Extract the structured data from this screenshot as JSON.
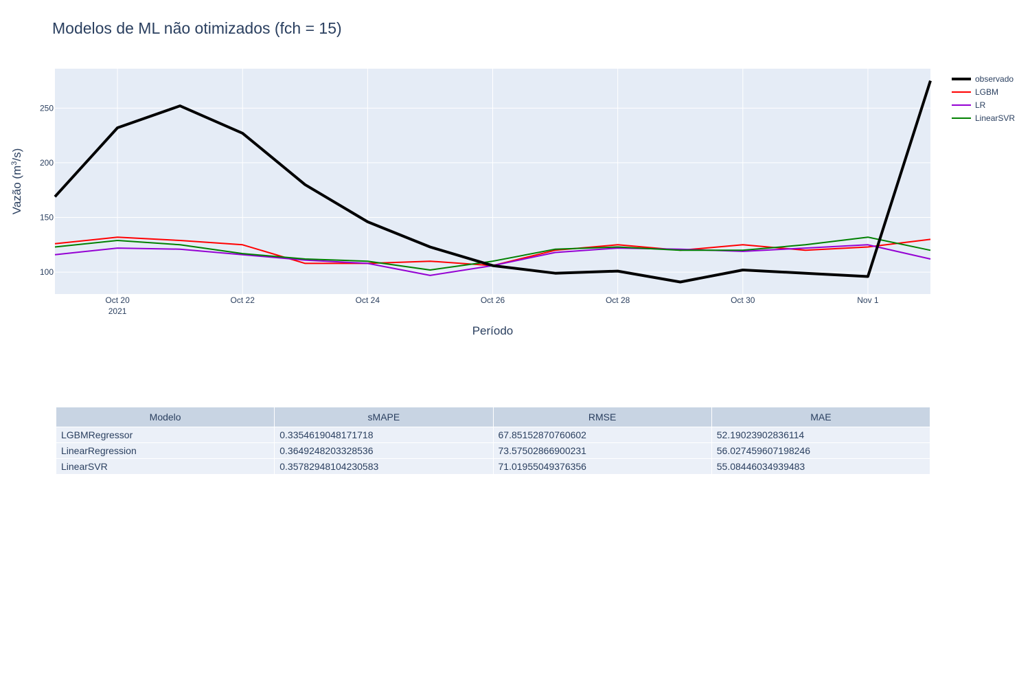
{
  "chart_data": [
    {
      "type": "line",
      "title": "Modelos de ML não otimizados (fch = 15)",
      "xlabel": "Período",
      "ylabel_main": "Vazão (m",
      "ylabel_sup": "3",
      "ylabel_tail": "/s)",
      "x": [
        "2021-10-19",
        "2021-10-20",
        "2021-10-21",
        "2021-10-22",
        "2021-10-23",
        "2021-10-24",
        "2021-10-25",
        "2021-10-26",
        "2021-10-27",
        "2021-10-28",
        "2021-10-29",
        "2021-10-30",
        "2021-10-31",
        "2021-11-01",
        "2021-11-02"
      ],
      "xlim": [
        "2021-10-19",
        "2021-11-02"
      ],
      "ylim": [
        80,
        286
      ],
      "x_ticks": [
        {
          "x": "2021-10-20",
          "label": "Oct 20",
          "year": "2021"
        },
        {
          "x": "2021-10-22",
          "label": "Oct 22"
        },
        {
          "x": "2021-10-24",
          "label": "Oct 24"
        },
        {
          "x": "2021-10-26",
          "label": "Oct 26"
        },
        {
          "x": "2021-10-28",
          "label": "Oct 28"
        },
        {
          "x": "2021-10-30",
          "label": "Oct 30"
        },
        {
          "x": "2021-11-01",
          "label": "Nov 1"
        }
      ],
      "y_ticks": [
        100,
        150,
        200,
        250
      ],
      "grid": true,
      "legend_position": "top-right",
      "series": [
        {
          "name": "observado",
          "color": "#000000",
          "width": 4,
          "values": [
            169,
            232,
            252,
            227,
            180,
            146,
            123,
            106,
            99,
            101,
            91,
            102,
            99,
            96,
            275
          ]
        },
        {
          "name": "LGBM",
          "color": "#ff0000",
          "width": 2,
          "values": [
            126,
            132,
            129,
            125,
            108,
            108,
            110,
            106,
            120,
            125,
            120,
            125,
            120,
            123,
            130
          ]
        },
        {
          "name": "LR",
          "color": "#9400d3",
          "width": 2,
          "values": [
            116,
            122,
            121,
            116,
            111,
            108,
            97,
            106,
            118,
            122,
            121,
            119,
            122,
            125,
            112
          ]
        },
        {
          "name": "LinearSVR",
          "color": "#008000",
          "width": 2,
          "values": [
            123,
            129,
            125,
            117,
            112,
            110,
            102,
            110,
            121,
            123,
            120,
            120,
            125,
            132,
            120
          ]
        }
      ]
    },
    {
      "type": "table",
      "columns": [
        "Modelo",
        "sMAPE",
        "RMSE",
        "MAE"
      ],
      "rows": [
        [
          "LGBMRegressor",
          "0.3354619048171718",
          "67.85152870760602",
          "52.19023902836114"
        ],
        [
          "LinearRegression",
          "0.3649248203328536",
          "73.57502866900231",
          "56.027459607198246"
        ],
        [
          "LinearSVR",
          "0.35782948104230583",
          "71.01955049376356",
          "55.08446034939483"
        ]
      ]
    }
  ]
}
